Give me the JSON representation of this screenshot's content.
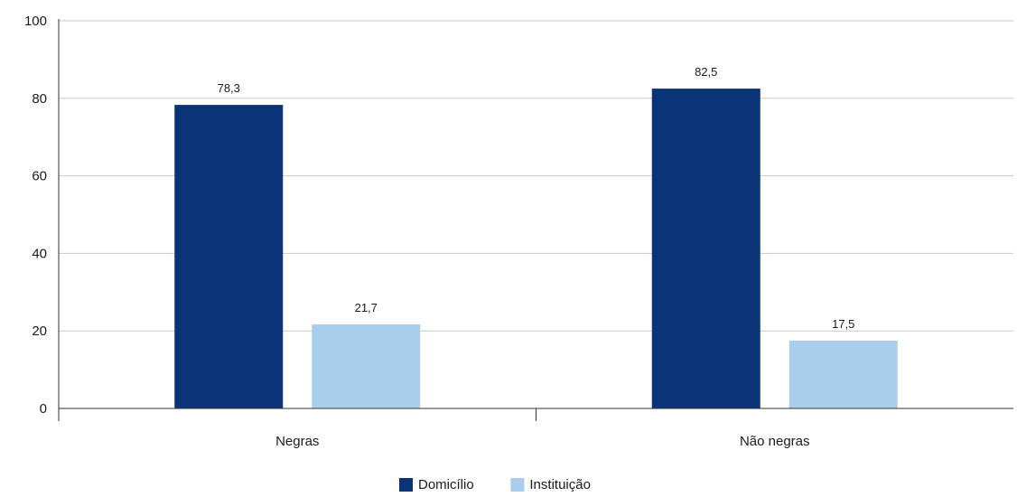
{
  "chart_data": {
    "type": "bar",
    "categories": [
      "Negras",
      "Não negras"
    ],
    "series": [
      {
        "name": "Domicílio",
        "values": [
          78.3,
          82.5
        ],
        "labels": [
          "78,3",
          "82,5"
        ],
        "color": "#0b3378"
      },
      {
        "name": "Instituição",
        "values": [
          21.7,
          17.5
        ],
        "labels": [
          "21,7",
          "17,5"
        ],
        "color": "#abcdec"
      }
    ],
    "ylim": [
      0,
      100
    ],
    "yticks": [
      0,
      20,
      40,
      60,
      80,
      100
    ],
    "grid": true,
    "legend_position": "bottom-center",
    "title": "",
    "xlabel": "",
    "ylabel": ""
  }
}
